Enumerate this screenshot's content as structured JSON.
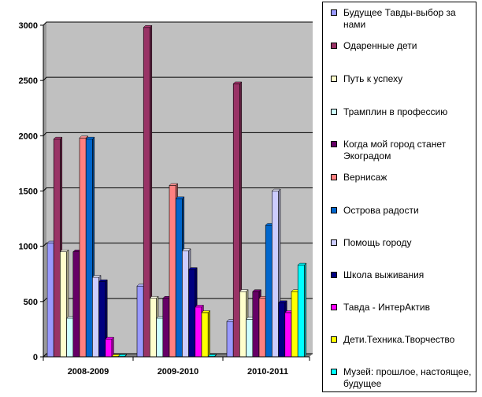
{
  "chart_data": {
    "type": "bar",
    "categories": [
      "2008-2009",
      "2009-2010",
      "2010-2011"
    ],
    "ylim": [
      0,
      3000
    ],
    "yticks": [
      0,
      500,
      1000,
      1500,
      2000,
      2500,
      3000
    ],
    "grid": true,
    "legend_position": "right",
    "series": [
      {
        "name": "Будущее Тавды-выбор за нами",
        "color": "#9999ff",
        "values": [
          1030,
          640,
          320
        ]
      },
      {
        "name": "Одаренные дети",
        "color": "#993366",
        "values": [
          1970,
          2980,
          2470
        ]
      },
      {
        "name": "Путь к успеху",
        "color": "#ffffcc",
        "values": [
          950,
          530,
          590
        ]
      },
      {
        "name": "Трамплин в профессию",
        "color": "#ccffff",
        "values": [
          350,
          350,
          340
        ]
      },
      {
        "name": "Когда мой город станет Экоградом",
        "color": "#660066",
        "values": [
          950,
          530,
          590
        ]
      },
      {
        "name": "Вернисаж",
        "color": "#ff8080",
        "values": [
          1980,
          1550,
          530
        ]
      },
      {
        "name": "Острова радости",
        "color": "#0066cc",
        "values": [
          1970,
          1430,
          1190
        ]
      },
      {
        "name": "Помощь городу",
        "color": "#ccccff",
        "values": [
          720,
          960,
          1500
        ]
      },
      {
        "name": "Школа выживания",
        "color": "#000080",
        "values": [
          680,
          790,
          490
        ]
      },
      {
        "name": "Тавда - ИнтерАктив",
        "color": "#ff00ff",
        "values": [
          160,
          450,
          400
        ]
      },
      {
        "name": "Дети.Техника.Творчество",
        "color": "#ffff00",
        "values": [
          0,
          400,
          590
        ]
      },
      {
        "name": "Музей: прошлое, настоящее, будущее",
        "color": "#00ffff",
        "values": [
          0,
          0,
          830
        ]
      }
    ]
  }
}
